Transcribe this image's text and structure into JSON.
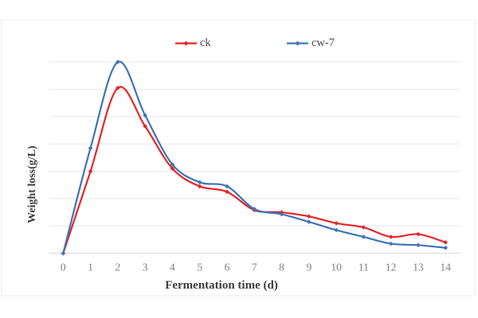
{
  "chart_data": {
    "type": "line",
    "title": "",
    "xlabel": "Fermentation time (d)",
    "ylabel": "Weight loss(g/L)",
    "categories": [
      "0",
      "1",
      "2",
      "3",
      "4",
      "5",
      "6",
      "7",
      "8",
      "9",
      "10",
      "11",
      "12",
      "13",
      "14"
    ],
    "x_values": [
      0,
      1,
      2,
      3,
      4,
      5,
      6,
      7,
      8,
      9,
      10,
      11,
      12,
      13,
      14
    ],
    "series": [
      {
        "name": "ck",
        "color": "#e52527",
        "marker": "diamond",
        "values": [
          0,
          3.0,
          6.05,
          4.65,
          3.1,
          2.45,
          2.25,
          1.58,
          1.5,
          1.35,
          1.1,
          0.95,
          0.6,
          0.7,
          0.4
        ]
      },
      {
        "name": "cw-7",
        "color": "#3e74b9",
        "marker": "diamond",
        "values": [
          0,
          3.85,
          7.0,
          5.05,
          3.25,
          2.6,
          2.45,
          1.62,
          1.43,
          1.15,
          0.85,
          0.6,
          0.35,
          0.3,
          0.2
        ]
      }
    ],
    "ylim": [
      0,
      7
    ],
    "y_gridline_step": 1,
    "y_tick_labels_visible": false,
    "grid": "horizontal",
    "legend_position": "top-center",
    "smooth_lines": true,
    "units_note": "y-axis shows no numeric tick labels; values estimated in gridline units from baseline"
  },
  "colors": {
    "gridline": "#e8e8e8",
    "axis_line": "#d6d6d6",
    "chart_border": "#ededed",
    "tick_label": "#808080",
    "legend_text": "#4d4d4d",
    "axis_title": "#3d3d3d"
  }
}
